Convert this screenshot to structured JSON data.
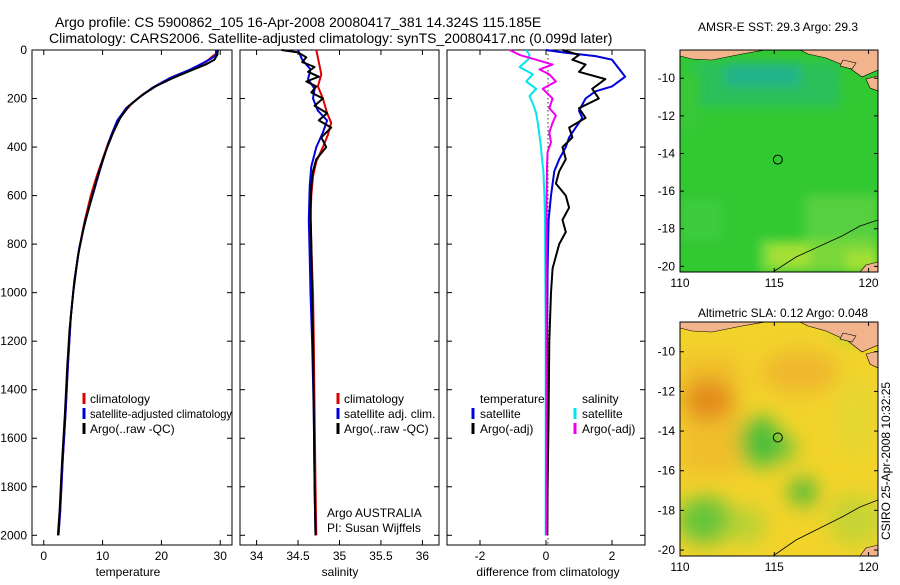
{
  "header": {
    "line1": "Argo profile: CS 5900862_105 16-Apr-2008 20080417_381 14.324S 115.185E",
    "line2": "Climatology: CARS2006. Satellite-adjusted climatology: synTS_20080417.nc (0.099d later)"
  },
  "colors": {
    "climatology": "#dd0000",
    "satellite": "#0000dd",
    "argo": "#000000",
    "satellite_diff_salinity": "#00e5ee",
    "argo_diff_salinity": "#ee00ee",
    "land": "#f2b48c"
  },
  "chart_data": [
    {
      "id": "temperature",
      "type": "line",
      "xlabel": "temperature",
      "xlim": [
        -2,
        32
      ],
      "ylim": [
        0,
        2040
      ],
      "xticks": [
        0,
        10,
        20,
        30
      ],
      "yticks": [
        0,
        200,
        400,
        600,
        800,
        1000,
        1200,
        1400,
        1600,
        1800,
        2000
      ],
      "legend": [
        "climatology",
        "satellite-adjusted climatology",
        "Argo(..raw -QC)"
      ],
      "series": [
        {
          "name": "climatology",
          "color": "#dd0000",
          "points": [
            [
              29.3,
              0
            ],
            [
              29.3,
              15
            ],
            [
              28.5,
              30
            ],
            [
              27.5,
              50
            ],
            [
              25,
              80
            ],
            [
              22,
              110
            ],
            [
              19,
              150
            ],
            [
              17,
              180
            ],
            [
              15,
              220
            ],
            [
              13.5,
              260
            ],
            [
              12,
              320
            ],
            [
              11,
              380
            ],
            [
              10,
              450
            ],
            [
              9,
              520
            ],
            [
              8,
              600
            ],
            [
              7,
              700
            ],
            [
              6,
              820
            ],
            [
              5.2,
              950
            ],
            [
              4.6,
              1100
            ],
            [
              4.1,
              1300
            ],
            [
              3.7,
              1500
            ],
            [
              3.2,
              1700
            ],
            [
              2.8,
              1900
            ],
            [
              2.5,
              2000
            ]
          ]
        },
        {
          "name": "satellite-adjusted climatology",
          "color": "#0000dd",
          "points": [
            [
              29.3,
              0
            ],
            [
              29.3,
              20
            ],
            [
              28.5,
              35
            ],
            [
              27,
              55
            ],
            [
              24.5,
              85
            ],
            [
              21.5,
              115
            ],
            [
              18.5,
              155
            ],
            [
              16,
              200
            ],
            [
              14,
              240
            ],
            [
              12.5,
              290
            ],
            [
              11.5,
              350
            ],
            [
              10.5,
              420
            ],
            [
              9.5,
              500
            ],
            [
              8.3,
              600
            ],
            [
              7.1,
              700
            ],
            [
              6,
              820
            ],
            [
              5.2,
              950
            ],
            [
              4.6,
              1100
            ],
            [
              4.1,
              1300
            ],
            [
              3.7,
              1500
            ],
            [
              3.2,
              1700
            ],
            [
              2.8,
              1900
            ],
            [
              2.5,
              2000
            ]
          ]
        },
        {
          "name": "Argo(..raw -QC)",
          "color": "#000000",
          "points": [
            [
              29.6,
              0
            ],
            [
              29.5,
              20
            ],
            [
              29,
              40
            ],
            [
              27.5,
              60
            ],
            [
              25,
              85
            ],
            [
              22,
              115
            ],
            [
              19,
              150
            ],
            [
              16.5,
              190
            ],
            [
              14.5,
              230
            ],
            [
              13,
              280
            ],
            [
              11.8,
              340
            ],
            [
              10.8,
              400
            ],
            [
              9.8,
              470
            ],
            [
              8.8,
              550
            ],
            [
              7.8,
              640
            ],
            [
              6.7,
              740
            ],
            [
              5.8,
              850
            ],
            [
              5,
              1000
            ],
            [
              4.4,
              1150
            ],
            [
              4,
              1300
            ],
            [
              3.6,
              1500
            ],
            [
              3.1,
              1700
            ],
            [
              2.7,
              1900
            ],
            [
              2.4,
              2000
            ]
          ]
        }
      ]
    },
    {
      "id": "salinity",
      "type": "line",
      "xlabel": "salinity",
      "xlim": [
        33.8,
        36.2
      ],
      "ylim": [
        0,
        2040
      ],
      "xticks": [
        34,
        34.5,
        35,
        35.5,
        36
      ],
      "legend": [
        "climatology",
        "satellite adj. clim.",
        "Argo(..raw -QC)"
      ],
      "annotations": [
        "Argo AUSTRALIA",
        "PI: Susan Wijffels"
      ],
      "series": [
        {
          "name": "climatology",
          "color": "#dd0000",
          "points": [
            [
              34.72,
              0
            ],
            [
              34.75,
              50
            ],
            [
              34.78,
              100
            ],
            [
              34.74,
              150
            ],
            [
              34.8,
              200
            ],
            [
              34.85,
              260
            ],
            [
              34.9,
              300
            ],
            [
              34.86,
              350
            ],
            [
              34.8,
              400
            ],
            [
              34.72,
              460
            ],
            [
              34.68,
              520
            ],
            [
              34.66,
              600
            ],
            [
              34.65,
              700
            ],
            [
              34.66,
              800
            ],
            [
              34.67,
              900
            ],
            [
              34.68,
              1000
            ],
            [
              34.69,
              1200
            ],
            [
              34.7,
              1500
            ],
            [
              34.71,
              1800
            ],
            [
              34.72,
              2000
            ]
          ]
        },
        {
          "name": "satellite adj. clim.",
          "color": "#0000dd",
          "points": [
            [
              34.5,
              0
            ],
            [
              34.55,
              40
            ],
            [
              34.65,
              80
            ],
            [
              34.62,
              120
            ],
            [
              34.7,
              160
            ],
            [
              34.68,
              200
            ],
            [
              34.74,
              250
            ],
            [
              34.85,
              290
            ],
            [
              34.8,
              340
            ],
            [
              34.72,
              400
            ],
            [
              34.66,
              480
            ],
            [
              34.64,
              560
            ],
            [
              34.63,
              700
            ],
            [
              34.64,
              850
            ],
            [
              34.65,
              1000
            ],
            [
              34.67,
              1200
            ],
            [
              34.69,
              1500
            ],
            [
              34.7,
              1800
            ],
            [
              34.71,
              2000
            ]
          ]
        },
        {
          "name": "Argo(..raw -QC)",
          "color": "#000000",
          "points": [
            [
              34.3,
              0
            ],
            [
              34.5,
              10
            ],
            [
              34.6,
              30
            ],
            [
              34.55,
              50
            ],
            [
              34.7,
              70
            ],
            [
              34.62,
              90
            ],
            [
              34.75,
              110
            ],
            [
              34.6,
              130
            ],
            [
              34.72,
              150
            ],
            [
              34.66,
              175
            ],
            [
              34.8,
              200
            ],
            [
              34.7,
              230
            ],
            [
              34.85,
              260
            ],
            [
              34.75,
              290
            ],
            [
              34.9,
              320
            ],
            [
              34.78,
              360
            ],
            [
              34.84,
              400
            ],
            [
              34.72,
              450
            ],
            [
              34.68,
              500
            ],
            [
              34.66,
              560
            ],
            [
              34.65,
              650
            ],
            [
              34.66,
              800
            ],
            [
              34.67,
              1000
            ],
            [
              34.68,
              1200
            ],
            [
              34.69,
              1500
            ],
            [
              34.7,
              1800
            ],
            [
              34.71,
              2000
            ]
          ]
        }
      ]
    },
    {
      "id": "difference",
      "type": "line",
      "xlabel": "difference from climatology",
      "xlim": [
        -3,
        3
      ],
      "ylim": [
        0,
        2040
      ],
      "xticks": [
        -2,
        0,
        2
      ],
      "legend_headers": [
        "temperature",
        "salinity"
      ],
      "legend": [
        "satellite",
        "Argo(-adj)",
        "satellite",
        "Argo(-adj)"
      ],
      "series": [
        {
          "name": "temperature satellite",
          "color": "#0000dd",
          "points": [
            [
              0,
              0
            ],
            [
              0.5,
              10
            ],
            [
              1.5,
              25
            ],
            [
              2,
              40
            ],
            [
              2.4,
              110
            ],
            [
              2,
              150
            ],
            [
              1.5,
              170
            ],
            [
              1.2,
              200
            ],
            [
              1,
              250
            ],
            [
              1.1,
              280
            ],
            [
              0.9,
              320
            ],
            [
              0.7,
              360
            ],
            [
              0.6,
              400
            ],
            [
              0.4,
              450
            ],
            [
              0.25,
              500
            ],
            [
              0.15,
              600
            ],
            [
              0.08,
              700
            ],
            [
              0.05,
              900
            ],
            [
              0.03,
              1200
            ],
            [
              0.02,
              1500
            ],
            [
              0.02,
              1800
            ],
            [
              0.01,
              2000
            ]
          ]
        },
        {
          "name": "temperature Argo(-adj)",
          "color": "#000000",
          "points": [
            [
              0.5,
              0
            ],
            [
              1,
              20
            ],
            [
              0.8,
              40
            ],
            [
              1.2,
              60
            ],
            [
              1,
              90
            ],
            [
              1.8,
              120
            ],
            [
              1.4,
              160
            ],
            [
              1.6,
              200
            ],
            [
              1,
              240
            ],
            [
              1.2,
              280
            ],
            [
              0.7,
              320
            ],
            [
              0.8,
              360
            ],
            [
              0.5,
              400
            ],
            [
              0.6,
              450
            ],
            [
              0.4,
              500
            ],
            [
              0.3,
              550
            ],
            [
              0.6,
              600
            ],
            [
              0.7,
              650
            ],
            [
              0.5,
              700
            ],
            [
              0.6,
              750
            ],
            [
              0.4,
              800
            ],
            [
              0.3,
              850
            ],
            [
              0.2,
              900
            ],
            [
              0.15,
              1000
            ],
            [
              0.1,
              1200
            ],
            [
              0.08,
              1500
            ],
            [
              0.05,
              1800
            ],
            [
              0.04,
              2000
            ]
          ]
        },
        {
          "name": "salinity satellite",
          "color": "#00e5ee",
          "points": [
            [
              -0.6,
              0
            ],
            [
              -0.5,
              20
            ],
            [
              -0.55,
              40
            ],
            [
              -0.8,
              70
            ],
            [
              -0.4,
              100
            ],
            [
              -0.6,
              130
            ],
            [
              -0.3,
              160
            ],
            [
              -0.5,
              190
            ],
            [
              -0.4,
              220
            ],
            [
              -0.3,
              260
            ],
            [
              -0.25,
              300
            ],
            [
              -0.2,
              350
            ],
            [
              -0.15,
              400
            ],
            [
              -0.12,
              450
            ],
            [
              -0.08,
              500
            ],
            [
              -0.05,
              600
            ],
            [
              -0.03,
              700
            ],
            [
              -0.02,
              900
            ],
            [
              -0.01,
              1200
            ],
            [
              -0.01,
              2000
            ]
          ]
        },
        {
          "name": "salinity Argo(-adj)",
          "color": "#ee00ee",
          "points": [
            [
              -1.1,
              0
            ],
            [
              -0.8,
              20
            ],
            [
              -0.3,
              40
            ],
            [
              0.2,
              60
            ],
            [
              -0.2,
              80
            ],
            [
              0.1,
              100
            ],
            [
              0.3,
              130
            ],
            [
              -0.1,
              160
            ],
            [
              0.2,
              200
            ],
            [
              0.1,
              240
            ],
            [
              0.3,
              270
            ],
            [
              0.2,
              300
            ],
            [
              0.1,
              340
            ],
            [
              0.15,
              380
            ],
            [
              0.05,
              420
            ],
            [
              0.03,
              480
            ],
            [
              0.02,
              600
            ],
            [
              0.01,
              800
            ],
            [
              0.01,
              2000
            ]
          ]
        }
      ]
    },
    {
      "id": "sst_map",
      "type": "heatmap",
      "title": "AMSR-E SST: 29.3 Argo: 29.3",
      "xlim": [
        110,
        120.5
      ],
      "ylim": [
        -20.3,
        -8.5
      ],
      "xticks": [
        110,
        115,
        120
      ],
      "yticks": [
        -10,
        -12,
        -14,
        -16,
        -18,
        -20
      ],
      "argo_position": [
        115.185,
        -14.324
      ]
    },
    {
      "id": "sla_map",
      "type": "heatmap",
      "title": "Altimetric SLA: 0.12 Argo: 0.048",
      "xlim": [
        110,
        120.5
      ],
      "ylim": [
        -20.3,
        -8.5
      ],
      "xticks": [
        110,
        115,
        120
      ],
      "yticks": [
        -10,
        -12,
        -14,
        -16,
        -18,
        -20
      ],
      "argo_position": [
        115.185,
        -14.324
      ]
    }
  ],
  "footer": {
    "vertical_stamp": "CSIRO 25-Apr-2008 10:32:25"
  }
}
